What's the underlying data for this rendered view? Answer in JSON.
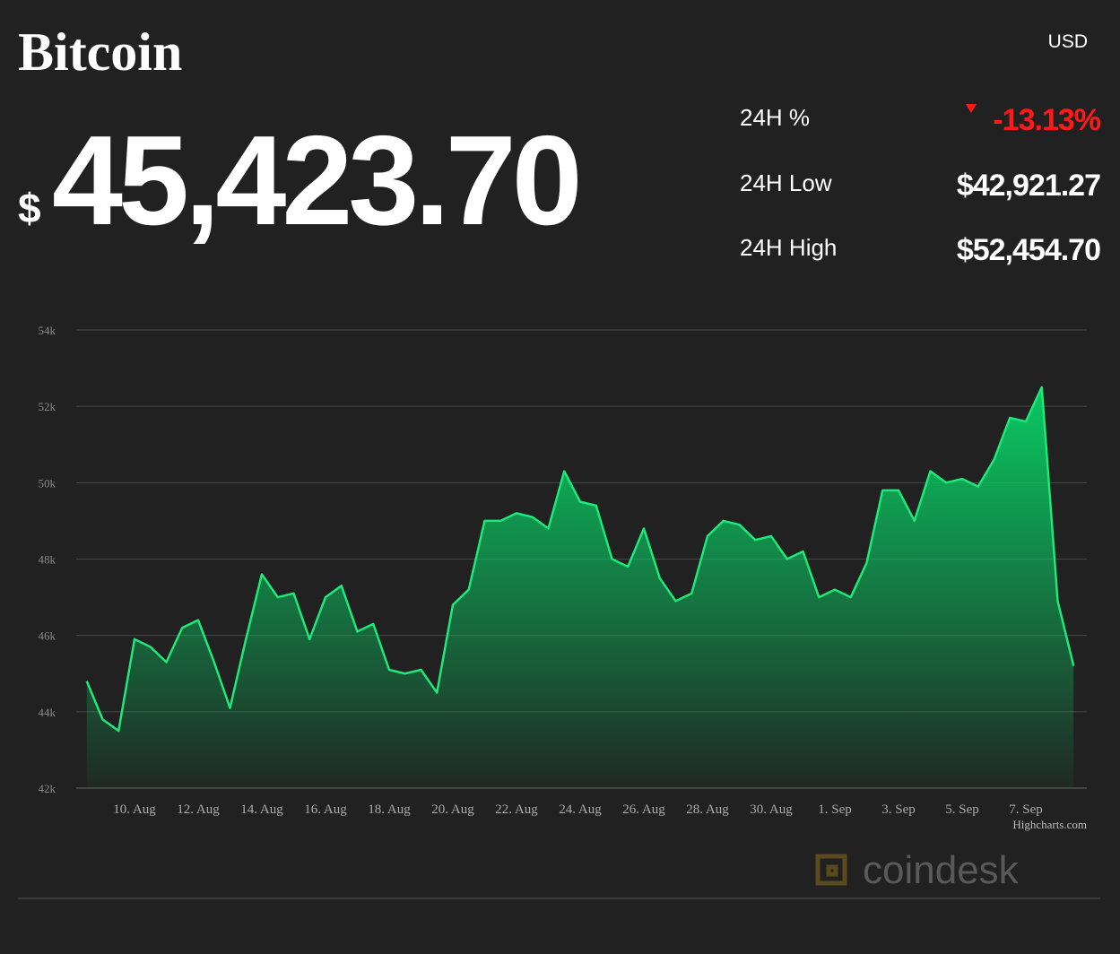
{
  "header": {
    "title": "Bitcoin",
    "currency_symbol": "$",
    "price": "45,423.70",
    "currency": "USD"
  },
  "stats": [
    {
      "label": "24H %",
      "value": "-13.13%"
    },
    {
      "label": "24H Low",
      "value": "$42,921.27"
    },
    {
      "label": "24H High",
      "value": "$52,454.70"
    }
  ],
  "chart_data": {
    "type": "area",
    "categories": [
      null,
      null,
      null,
      "10. Aug",
      null,
      null,
      null,
      "12. Aug",
      null,
      null,
      null,
      "14. Aug",
      null,
      null,
      null,
      "16. Aug",
      null,
      null,
      null,
      "18. Aug",
      null,
      null,
      null,
      "20. Aug",
      null,
      null,
      null,
      "22. Aug",
      null,
      null,
      null,
      "24. Aug",
      null,
      null,
      null,
      "26. Aug",
      null,
      null,
      null,
      "28. Aug",
      null,
      null,
      null,
      "30. Aug",
      null,
      null,
      null,
      "1. Sep",
      null,
      null,
      null,
      "3. Sep",
      null,
      null,
      null,
      "5. Sep",
      null,
      null,
      null,
      "7. Sep",
      null,
      null,
      null
    ],
    "values": [
      44800,
      43800,
      43500,
      45900,
      45700,
      45300,
      46200,
      46400,
      45300,
      44100,
      45900,
      47600,
      47000,
      47100,
      45900,
      47000,
      47300,
      46100,
      46300,
      45100,
      45000,
      45100,
      44500,
      46800,
      47200,
      49000,
      49000,
      49200,
      49100,
      48800,
      50300,
      49500,
      49400,
      48000,
      47800,
      48800,
      47500,
      46900,
      47100,
      48600,
      49000,
      48900,
      48500,
      48600,
      48000,
      48200,
      47000,
      47200,
      47000,
      47900,
      49800,
      49800,
      49000,
      50300,
      50000,
      50100,
      49900,
      50600,
      51700,
      51600,
      52500,
      46900,
      45200
    ],
    "color": "#1ee878",
    "ylim": [
      42000,
      54000
    ],
    "yticks": [
      {
        "value": 42000,
        "label": "42k"
      },
      {
        "value": 44000,
        "label": "44k"
      },
      {
        "value": 46000,
        "label": "46k"
      },
      {
        "value": 48000,
        "label": "48k"
      },
      {
        "value": 50000,
        "label": "50k"
      },
      {
        "value": 52000,
        "label": "52k"
      },
      {
        "value": 54000,
        "label": "54k"
      }
    ],
    "grid": true
  },
  "credit": "Highcharts.com",
  "brand": "coindesk"
}
